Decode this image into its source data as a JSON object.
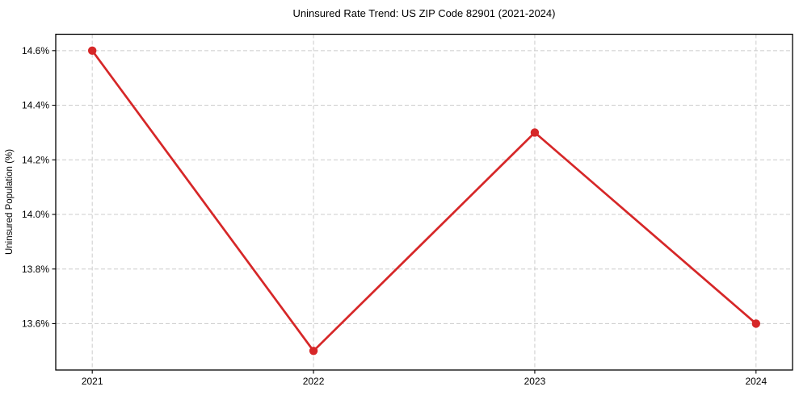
{
  "chart_data": {
    "type": "line",
    "title": "Uninsured Rate Trend: US ZIP Code 82901 (2021-2024)",
    "xlabel": "",
    "ylabel": "Uninsured Population (%)",
    "categories": [
      "2021",
      "2022",
      "2023",
      "2024"
    ],
    "values": [
      14.6,
      13.5,
      14.3,
      13.6
    ],
    "yticks": {
      "values": [
        13.6,
        13.8,
        14.0,
        14.2,
        14.4,
        14.6
      ],
      "labels": [
        "13.6%",
        "13.8%",
        "14.0%",
        "14.2%",
        "14.4%",
        "14.6%"
      ]
    },
    "ylim": [
      13.43,
      14.66
    ],
    "xlim": [
      -0.165,
      3.165
    ],
    "grid": {
      "visible": true,
      "style": "dashed",
      "color": "#cccccc"
    },
    "legend_position": "none",
    "style": {
      "line_color": "#d62728",
      "marker": "circle",
      "marker_color": "#d62728",
      "background": "#ffffff",
      "axis_color": "#000000",
      "text_color": "#000000"
    }
  }
}
